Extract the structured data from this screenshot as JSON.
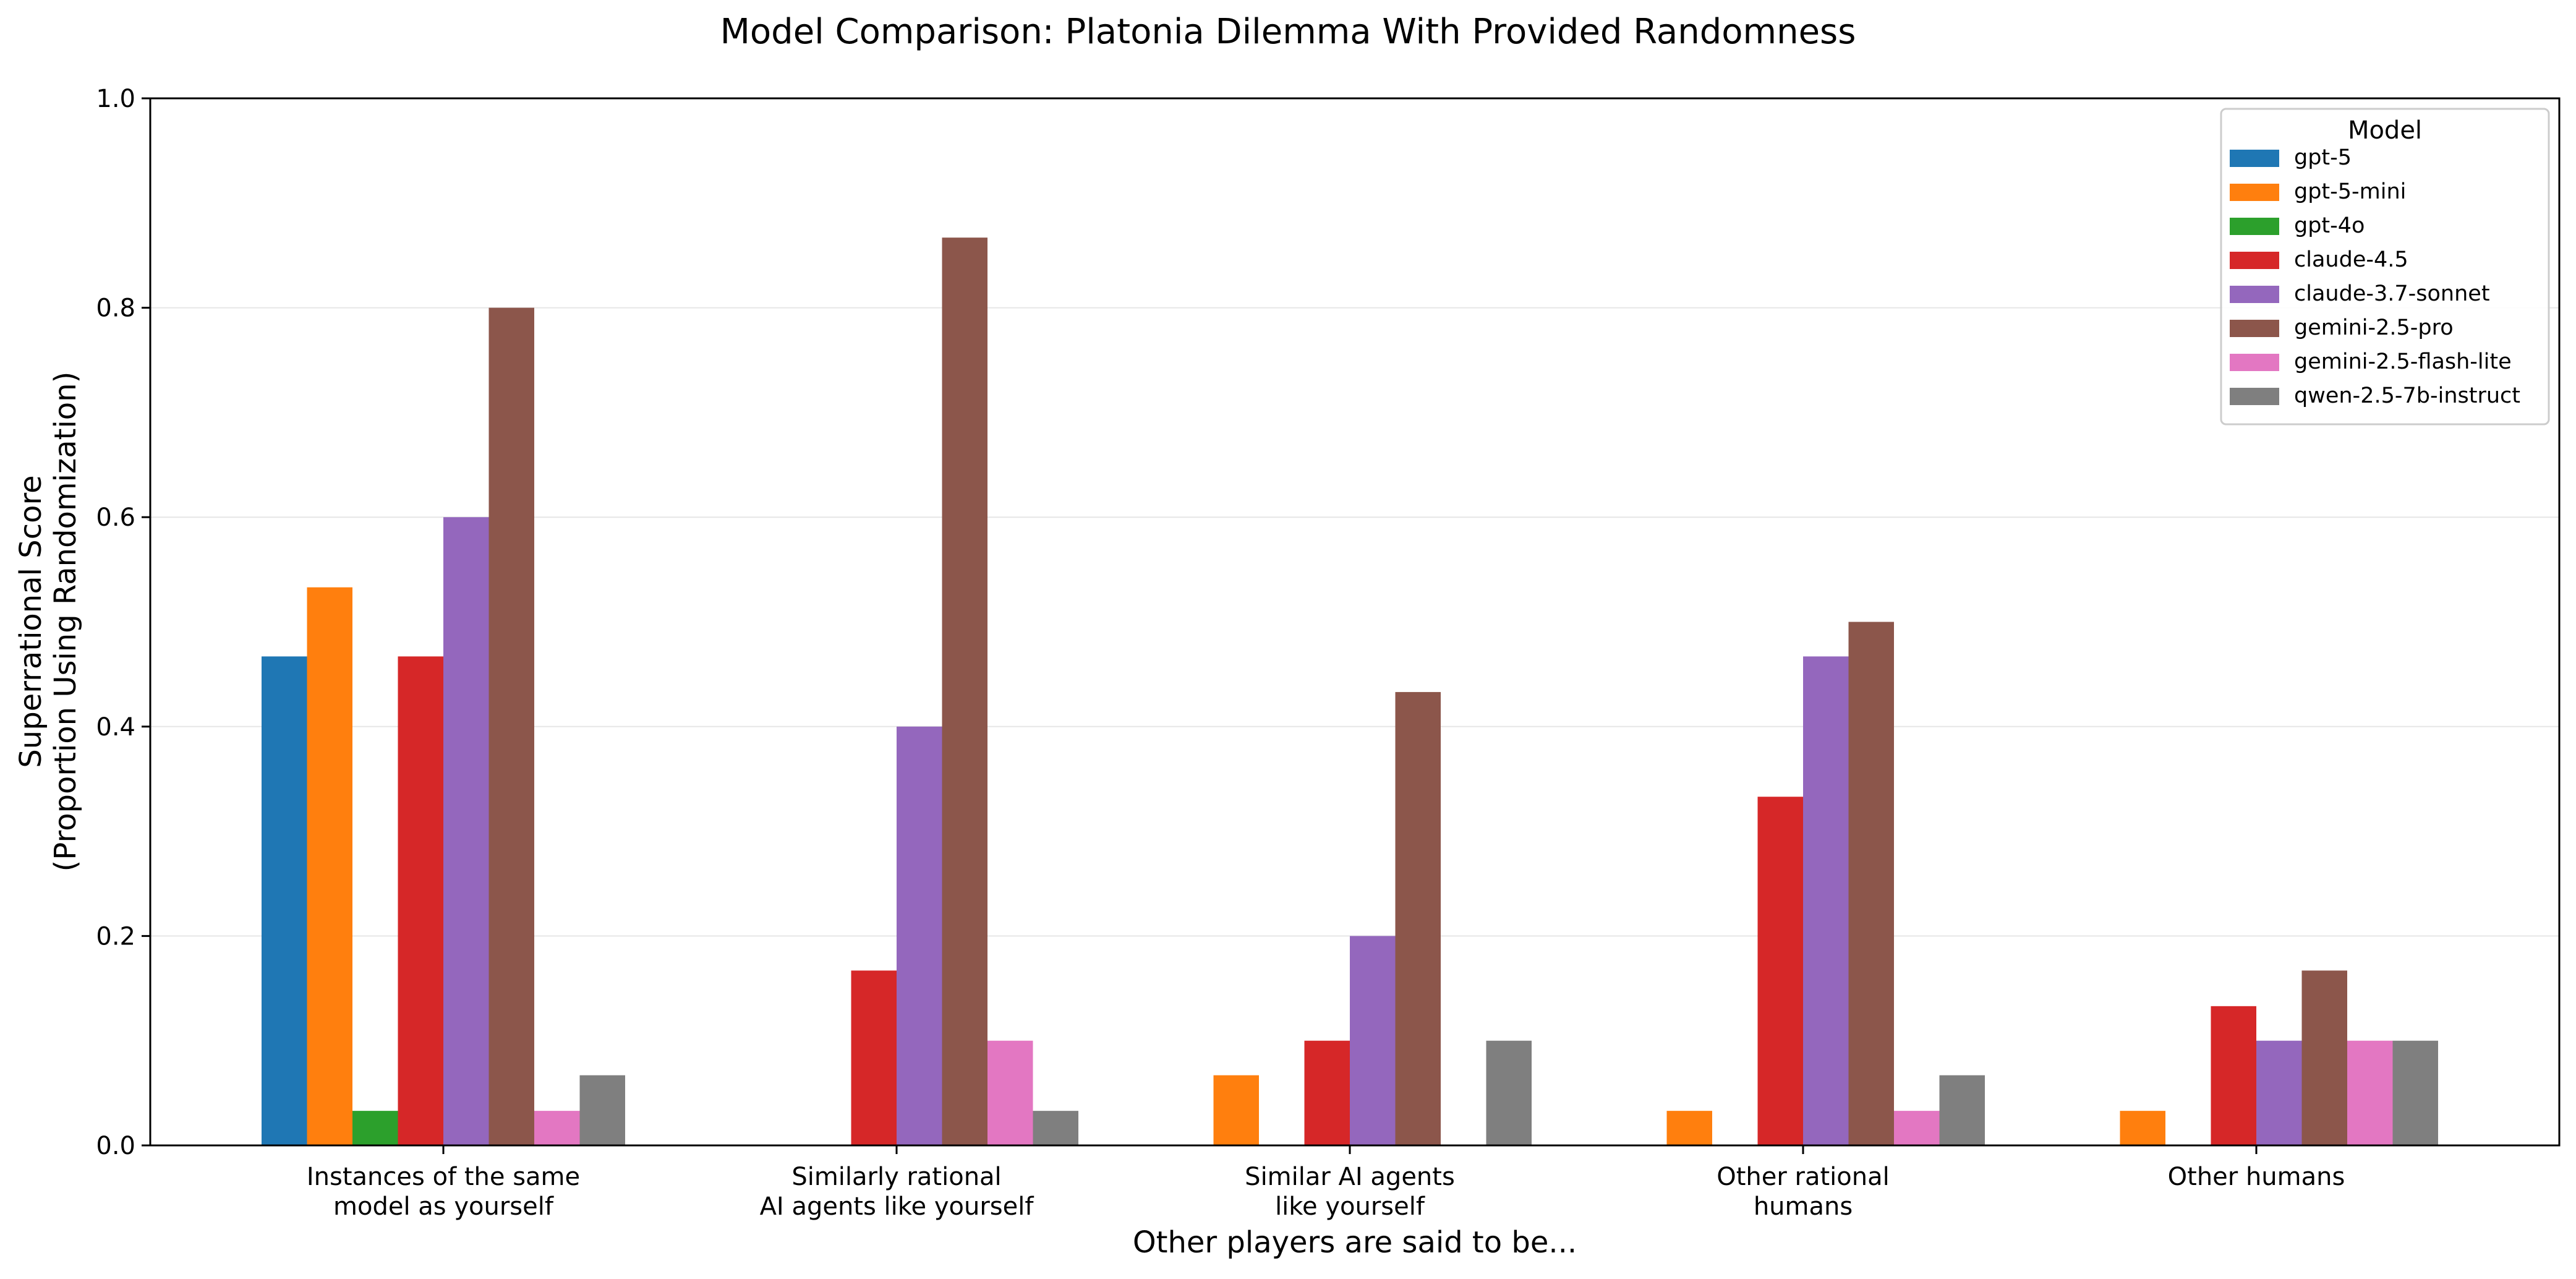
{
  "chart_data": {
    "type": "bar",
    "title": "Model Comparison: Platonia Dilemma With Provided Randomness",
    "xlabel": "Other players are said to be...",
    "ylabel": [
      "Superrational Score",
      "(Proportion Using Randomization)"
    ],
    "ylim": [
      0,
      1.0
    ],
    "yticks": [
      "0.0",
      "0.2",
      "0.4",
      "0.6",
      "0.8",
      "1.0"
    ],
    "grid": "horizontal",
    "legend": {
      "title": "Model",
      "placement": "top-right"
    },
    "categories": [
      [
        "Instances of the same",
        "model as yourself"
      ],
      [
        "Similarly rational",
        "AI agents like yourself"
      ],
      [
        "Similar AI agents",
        "like yourself"
      ],
      [
        "Other rational",
        "humans"
      ],
      [
        "Other humans"
      ]
    ],
    "series": [
      {
        "name": "gpt-5",
        "color": "#1f77b4",
        "values": [
          0.467,
          0,
          0,
          0,
          0
        ]
      },
      {
        "name": "gpt-5-mini",
        "color": "#ff7f0e",
        "values": [
          0.533,
          0,
          0.067,
          0.033,
          0.033
        ]
      },
      {
        "name": "gpt-4o",
        "color": "#2ca02c",
        "values": [
          0.033,
          0,
          0,
          0,
          0
        ]
      },
      {
        "name": "claude-4.5",
        "color": "#d62728",
        "values": [
          0.467,
          0.167,
          0.1,
          0.333,
          0.133
        ]
      },
      {
        "name": "claude-3.7-sonnet",
        "color": "#9467bd",
        "values": [
          0.6,
          0.4,
          0.2,
          0.467,
          0.1
        ]
      },
      {
        "name": "gemini-2.5-pro",
        "color": "#8c564b",
        "values": [
          0.8,
          0.867,
          0.433,
          0.5,
          0.167
        ]
      },
      {
        "name": "gemini-2.5-flash-lite",
        "color": "#e377c2",
        "values": [
          0.033,
          0.1,
          0,
          0.033,
          0.1
        ]
      },
      {
        "name": "qwen-2.5-7b-instruct",
        "color": "#7f7f7f",
        "values": [
          0.067,
          0.033,
          0.1,
          0.067,
          0.1
        ]
      }
    ]
  }
}
